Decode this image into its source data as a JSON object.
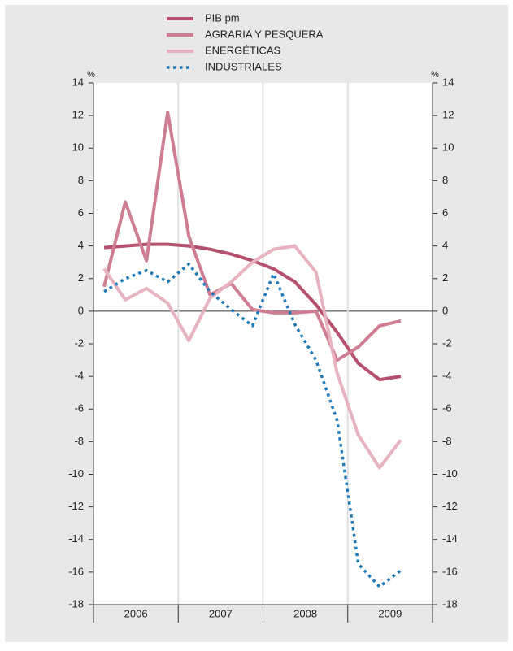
{
  "chart_data": {
    "type": "line",
    "y_unit_left": "%",
    "y_unit_right": "%",
    "x": [
      2006.125,
      2006.375,
      2006.625,
      2006.875,
      2007.125,
      2007.375,
      2007.625,
      2007.875,
      2008.125,
      2008.375,
      2008.625,
      2008.875,
      2009.125,
      2009.375,
      2009.625
    ],
    "xlim": [
      2006,
      2010
    ],
    "xticks": [
      {
        "value": 2006.5,
        "label": "2006"
      },
      {
        "value": 2007.5,
        "label": "2007"
      },
      {
        "value": 2008.5,
        "label": "2008"
      },
      {
        "value": 2009.5,
        "label": "2009"
      }
    ],
    "year_bounds": [
      2006,
      2007,
      2008,
      2009,
      2010
    ],
    "ylim": [
      -18,
      14
    ],
    "yticks": [
      14,
      12,
      10,
      8,
      6,
      4,
      2,
      0,
      -2,
      -4,
      -6,
      -8,
      -10,
      -12,
      -14,
      -16,
      -18
    ],
    "series": [
      {
        "name": "PIB pm",
        "color": "#b5506e",
        "dotted": false,
        "values": [
          3.9,
          4.0,
          4.1,
          4.1,
          4.0,
          3.8,
          3.5,
          3.1,
          2.6,
          1.8,
          0.4,
          -1.3,
          -3.2,
          -4.2,
          -4.0
        ]
      },
      {
        "name": "AGRARIA Y PESQUERA",
        "color": "#cf7d93",
        "dotted": false,
        "values": [
          1.5,
          6.7,
          3.1,
          12.2,
          4.6,
          1.0,
          1.7,
          0.1,
          -0.1,
          -0.1,
          0.0,
          -3.0,
          -2.2,
          -0.9,
          -0.6
        ]
      },
      {
        "name": "ENERGÉTICAS",
        "color": "#e8b3c1",
        "dotted": false,
        "values": [
          2.6,
          0.7,
          1.4,
          0.5,
          -1.8,
          0.8,
          1.8,
          3.0,
          3.8,
          4.0,
          2.4,
          -3.8,
          -7.6,
          -9.6,
          -7.9
        ]
      },
      {
        "name": "INDUSTRIALES",
        "color": "#1f7ab8",
        "dotted": true,
        "values": [
          1.2,
          2.0,
          2.5,
          1.8,
          2.9,
          1.2,
          0.1,
          -0.9,
          2.3,
          -0.8,
          -3.0,
          -6.7,
          -15.5,
          -16.9,
          -15.9
        ]
      }
    ]
  }
}
